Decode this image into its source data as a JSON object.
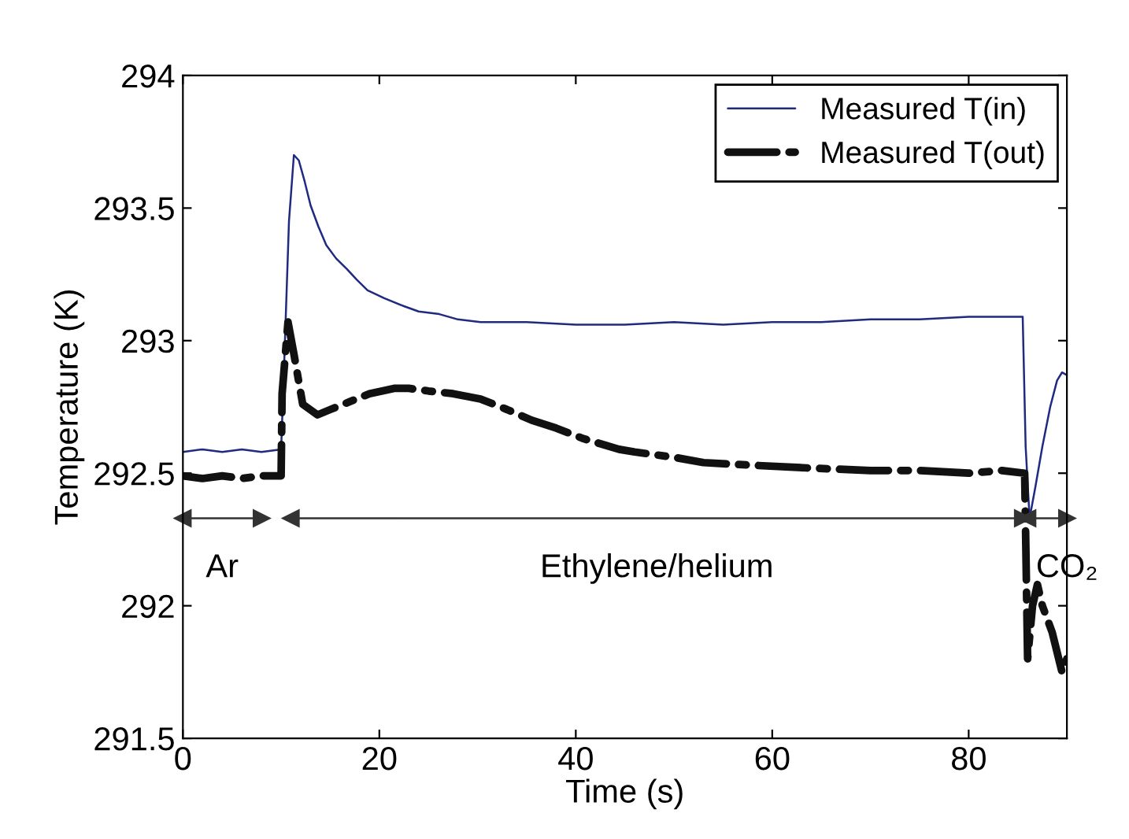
{
  "chart_data": {
    "type": "line",
    "xlabel": "Time (s)",
    "ylabel": "Temperature (K)",
    "xlim": [
      0,
      90
    ],
    "ylim": [
      291.5,
      294
    ],
    "xticks": [
      0,
      20,
      40,
      60,
      80
    ],
    "yticks": [
      291.5,
      292,
      292.5,
      293,
      293.5,
      294
    ],
    "grid": false,
    "legend": "top right",
    "series": [
      {
        "name": "Measured T(in)",
        "color": "#1f2a80",
        "line_style": "solid",
        "x": [
          0,
          2,
          4,
          6,
          8,
          10,
          10.3,
          10.8,
          11.3,
          11.8,
          12.4,
          13,
          13.8,
          14.6,
          15.6,
          16.7,
          17.7,
          18.8,
          20.5,
          22.5,
          24,
          26.1,
          28,
          30.3,
          35,
          40,
          45,
          50,
          55,
          60,
          65,
          70,
          75,
          80,
          85.5,
          85.8,
          86.2,
          86.8,
          87.5,
          88.3,
          89,
          89.5,
          90
        ],
        "values": [
          292.58,
          292.59,
          292.58,
          292.59,
          292.58,
          292.59,
          292.9,
          293.45,
          293.7,
          293.68,
          293.6,
          293.51,
          293.43,
          293.36,
          293.31,
          293.27,
          293.23,
          293.19,
          293.16,
          293.13,
          293.11,
          293.1,
          293.08,
          293.07,
          293.07,
          293.06,
          293.06,
          293.07,
          293.06,
          293.07,
          293.07,
          293.08,
          293.08,
          293.09,
          293.09,
          292.6,
          292.33,
          292.45,
          292.6,
          292.75,
          292.85,
          292.88,
          292.87
        ]
      },
      {
        "name": "Measured T(out)",
        "color": "#111111",
        "line_style": "dashdot",
        "x": [
          0,
          2,
          4,
          6,
          8,
          10,
          10.1,
          10.7,
          11.3,
          12.2,
          13.7,
          15,
          17,
          19,
          21.5,
          23,
          25,
          27.5,
          30.3,
          33,
          35.5,
          38,
          40.8,
          44.4,
          46,
          50,
          53,
          58,
          63.5,
          70,
          75,
          80,
          83.4,
          85.7,
          86,
          86.5,
          87,
          87.5,
          88.5,
          89.5,
          90
        ],
        "values": [
          292.49,
          292.48,
          292.49,
          292.48,
          292.49,
          292.49,
          292.8,
          293.07,
          292.95,
          292.76,
          292.72,
          292.74,
          292.77,
          292.8,
          292.82,
          292.82,
          292.81,
          292.8,
          292.78,
          292.74,
          292.7,
          292.67,
          292.63,
          292.59,
          292.58,
          292.56,
          292.54,
          292.53,
          292.52,
          292.51,
          292.51,
          292.5,
          292.51,
          292.5,
          291.8,
          292.0,
          292.08,
          292.0,
          291.9,
          291.75,
          291.8
        ]
      },
      {
        "type": "line",
        "color": "#333333",
        "line_style": "solid",
        "marker": "triangle",
        "x": [
          0,
          8
        ],
        "values": [
          292.33,
          292.33
        ]
      },
      {
        "type": "line",
        "color": "#333333",
        "line_style": "solid",
        "marker": "triangle",
        "x": [
          11,
          85.5
        ],
        "values": [
          292.33,
          292.33
        ]
      },
      {
        "type": "line",
        "color": "#333333",
        "line_style": "solid",
        "marker": "triangle",
        "x": [
          86,
          90
        ],
        "values": [
          292.33,
          292.33
        ]
      }
    ],
    "annotations": [
      "Ar",
      "Ethylene/helium",
      "CO₂"
    ]
  }
}
